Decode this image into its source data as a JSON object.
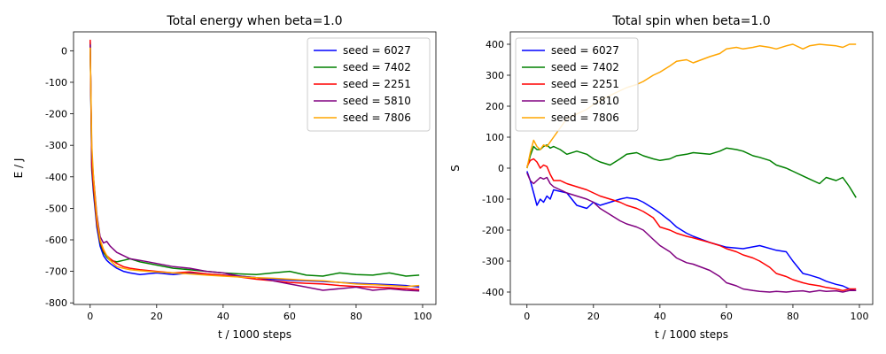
{
  "chart_data": [
    {
      "type": "line",
      "title": "Total energy when beta=1.0",
      "xlabel": "t / 1000 steps",
      "ylabel": "E / J",
      "xlim": [
        -5,
        104
      ],
      "ylim": [
        -805,
        60
      ],
      "xticks": [
        0,
        20,
        40,
        60,
        80,
        100
      ],
      "yticks": [
        0,
        -100,
        -200,
        -300,
        -400,
        -500,
        -600,
        -700,
        -800
      ],
      "grid": false,
      "legend": "top-right",
      "series": [
        {
          "name": "seed = 6027",
          "color": "#0000ff",
          "x": [
            0,
            0.5,
            1,
            2,
            3,
            4,
            5,
            6,
            8,
            10,
            12,
            15,
            20,
            25,
            30,
            35,
            40,
            45,
            50,
            55,
            60,
            65,
            70,
            75,
            80,
            85,
            90,
            95,
            99
          ],
          "values": [
            30,
            -380,
            -450,
            -560,
            -620,
            -650,
            -665,
            -675,
            -690,
            -700,
            -705,
            -710,
            -705,
            -710,
            -705,
            -710,
            -712,
            -715,
            -720,
            -725,
            -728,
            -730,
            -732,
            -735,
            -738,
            -740,
            -742,
            -745,
            -750
          ]
        },
        {
          "name": "seed = 7402",
          "color": "#008000",
          "x": [
            0,
            0.5,
            1,
            2,
            3,
            4,
            5,
            6,
            8,
            10,
            12,
            15,
            20,
            25,
            30,
            35,
            40,
            45,
            50,
            55,
            60,
            65,
            70,
            75,
            80,
            85,
            90,
            95,
            99
          ],
          "values": [
            25,
            -370,
            -440,
            -550,
            -610,
            -640,
            -655,
            -665,
            -670,
            -665,
            -660,
            -670,
            -680,
            -690,
            -695,
            -700,
            -705,
            -708,
            -710,
            -705,
            -700,
            -712,
            -715,
            -705,
            -710,
            -712,
            -705,
            -715,
            -712
          ]
        },
        {
          "name": "seed = 2251",
          "color": "#ff0000",
          "x": [
            0,
            0.5,
            1,
            2,
            3,
            4,
            5,
            6,
            8,
            10,
            12,
            15,
            20,
            25,
            30,
            35,
            40,
            45,
            50,
            55,
            60,
            65,
            70,
            75,
            80,
            85,
            90,
            95,
            99
          ],
          "values": [
            35,
            -360,
            -430,
            -545,
            -605,
            -635,
            -650,
            -660,
            -675,
            -685,
            -690,
            -695,
            -700,
            -705,
            -702,
            -708,
            -712,
            -718,
            -725,
            -730,
            -735,
            -738,
            -740,
            -745,
            -748,
            -750,
            -752,
            -755,
            -758
          ]
        },
        {
          "name": "seed = 5810",
          "color": "#800080",
          "x": [
            0,
            0.5,
            1,
            2,
            3,
            4,
            5,
            6,
            8,
            10,
            12,
            15,
            20,
            25,
            30,
            35,
            40,
            45,
            50,
            55,
            60,
            65,
            70,
            75,
            80,
            85,
            90,
            95,
            99
          ],
          "values": [
            20,
            -330,
            -400,
            -520,
            -590,
            -610,
            -605,
            -620,
            -640,
            -650,
            -660,
            -665,
            -675,
            -685,
            -690,
            -700,
            -705,
            -715,
            -720,
            -730,
            -740,
            -750,
            -760,
            -755,
            -750,
            -760,
            -755,
            -760,
            -762
          ]
        },
        {
          "name": "seed = 7806",
          "color": "#ffa500",
          "x": [
            0,
            0.5,
            1,
            2,
            3,
            4,
            5,
            6,
            8,
            10,
            12,
            15,
            20,
            25,
            30,
            35,
            40,
            45,
            50,
            55,
            60,
            65,
            70,
            75,
            80,
            85,
            90,
            95,
            99
          ],
          "values": [
            10,
            -300,
            -400,
            -530,
            -600,
            -630,
            -650,
            -665,
            -685,
            -690,
            -695,
            -698,
            -702,
            -705,
            -708,
            -712,
            -715,
            -718,
            -720,
            -722,
            -725,
            -728,
            -730,
            -735,
            -740,
            -742,
            -745,
            -748,
            -745
          ]
        }
      ]
    },
    {
      "type": "line",
      "title": "Total spin when beta=1.0",
      "xlabel": "t / 1000 steps",
      "ylabel": "S",
      "xlim": [
        -5,
        104
      ],
      "ylim": [
        -440,
        440
      ],
      "xticks": [
        0,
        20,
        40,
        60,
        80,
        100
      ],
      "yticks": [
        400,
        300,
        200,
        100,
        0,
        -100,
        -200,
        -300,
        -400
      ],
      "grid": false,
      "legend": "top-left",
      "series": [
        {
          "name": "seed = 6027",
          "color": "#0000ff",
          "x": [
            0,
            1,
            2,
            3,
            4,
            5,
            6,
            7,
            8,
            10,
            12,
            15,
            18,
            20,
            22,
            25,
            28,
            30,
            33,
            35,
            38,
            40,
            43,
            45,
            48,
            50,
            55,
            60,
            65,
            70,
            75,
            78,
            80,
            83,
            85,
            88,
            90,
            93,
            95,
            97,
            99
          ],
          "values": [
            -10,
            -40,
            -80,
            -120,
            -100,
            -110,
            -90,
            -100,
            -70,
            -75,
            -80,
            -120,
            -130,
            -110,
            -120,
            -110,
            -100,
            -95,
            -100,
            -110,
            -130,
            -145,
            -170,
            -190,
            -210,
            -220,
            -240,
            -255,
            -260,
            -250,
            -265,
            -270,
            -300,
            -340,
            -345,
            -355,
            -365,
            -375,
            -380,
            -390,
            -395
          ]
        },
        {
          "name": "seed = 7402",
          "color": "#008000",
          "x": [
            0,
            1,
            2,
            3,
            4,
            5,
            6,
            7,
            8,
            10,
            12,
            15,
            18,
            20,
            22,
            25,
            28,
            30,
            33,
            35,
            38,
            40,
            43,
            45,
            48,
            50,
            55,
            58,
            60,
            63,
            65,
            68,
            70,
            73,
            75,
            78,
            80,
            83,
            85,
            88,
            90,
            93,
            95,
            97,
            99
          ],
          "values": [
            0,
            40,
            70,
            60,
            60,
            70,
            75,
            65,
            70,
            60,
            45,
            55,
            45,
            30,
            20,
            10,
            30,
            45,
            50,
            40,
            30,
            25,
            30,
            40,
            45,
            50,
            45,
            55,
            65,
            60,
            55,
            40,
            35,
            25,
            10,
            0,
            -10,
            -25,
            -35,
            -50,
            -30,
            -40,
            -30,
            -60,
            -95
          ]
        },
        {
          "name": "seed = 2251",
          "color": "#ff0000",
          "x": [
            0,
            1,
            2,
            3,
            4,
            5,
            6,
            7,
            8,
            10,
            12,
            15,
            18,
            20,
            22,
            25,
            28,
            30,
            33,
            35,
            38,
            40,
            43,
            45,
            48,
            50,
            55,
            58,
            60,
            63,
            65,
            68,
            70,
            73,
            75,
            78,
            80,
            83,
            85,
            88,
            90,
            93,
            95,
            97,
            99
          ],
          "values": [
            5,
            25,
            30,
            20,
            0,
            10,
            5,
            -20,
            -40,
            -40,
            -50,
            -60,
            -70,
            -80,
            -90,
            -100,
            -110,
            -120,
            -130,
            -140,
            -160,
            -190,
            -200,
            -210,
            -220,
            -225,
            -240,
            -250,
            -260,
            -270,
            -280,
            -290,
            -300,
            -320,
            -340,
            -350,
            -360,
            -370,
            -375,
            -380,
            -385,
            -390,
            -395,
            -390,
            -390
          ]
        },
        {
          "name": "seed = 5810",
          "color": "#800080",
          "x": [
            0,
            1,
            2,
            3,
            4,
            5,
            6,
            7,
            8,
            10,
            12,
            15,
            18,
            20,
            22,
            25,
            28,
            30,
            33,
            35,
            38,
            40,
            43,
            45,
            48,
            50,
            55,
            58,
            60,
            63,
            65,
            68,
            70,
            73,
            75,
            78,
            80,
            83,
            85,
            88,
            90,
            93,
            95,
            97,
            99
          ],
          "values": [
            -15,
            -40,
            -50,
            -40,
            -30,
            -35,
            -30,
            -50,
            -60,
            -70,
            -80,
            -90,
            -100,
            -110,
            -130,
            -150,
            -170,
            -180,
            -190,
            -200,
            -230,
            -250,
            -270,
            -290,
            -305,
            -310,
            -330,
            -350,
            -370,
            -380,
            -390,
            -395,
            -398,
            -400,
            -398,
            -400,
            -398,
            -396,
            -400,
            -395,
            -398,
            -396,
            -400,
            -395,
            -395
          ]
        },
        {
          "name": "seed = 7806",
          "color": "#ffa500",
          "x": [
            0,
            1,
            2,
            3,
            4,
            5,
            6,
            7,
            8,
            10,
            12,
            15,
            18,
            20,
            22,
            25,
            28,
            30,
            33,
            35,
            38,
            40,
            43,
            45,
            48,
            50,
            55,
            58,
            60,
            63,
            65,
            68,
            70,
            73,
            75,
            78,
            80,
            83,
            85,
            88,
            90,
            93,
            95,
            97,
            99
          ],
          "values": [
            0,
            50,
            90,
            70,
            60,
            75,
            70,
            85,
            100,
            130,
            160,
            175,
            190,
            205,
            220,
            235,
            250,
            260,
            270,
            280,
            300,
            310,
            330,
            345,
            350,
            340,
            360,
            370,
            385,
            390,
            385,
            390,
            395,
            390,
            385,
            395,
            400,
            385,
            395,
            400,
            398,
            395,
            390,
            400,
            400
          ]
        }
      ]
    }
  ]
}
